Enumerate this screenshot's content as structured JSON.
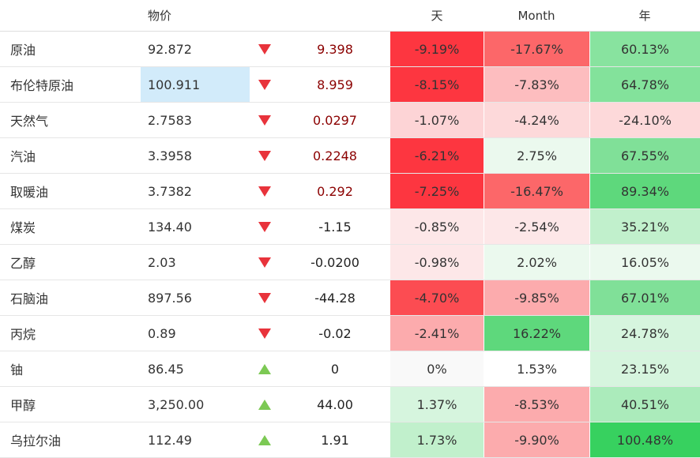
{
  "header": {
    "price": "物价",
    "day": "天",
    "month": "Month",
    "year": "年"
  },
  "colors": {
    "arrow_down": "#e8333b",
    "arrow_up": "#7cc954",
    "highlight": "#d2ebfa"
  },
  "rows": [
    {
      "name": "原油",
      "price": "92.872",
      "dir": "down",
      "change": "9.398",
      "change_red": true,
      "day": "-9.19%",
      "month": "-17.67%",
      "year": "60.13%",
      "day_bg": "#fd3640",
      "month_bg": "#fc6769",
      "year_bg": "#88e39f"
    },
    {
      "name": "布伦特原油",
      "price": "100.911",
      "dir": "down",
      "change": "8.959",
      "change_red": true,
      "highlight": true,
      "day": "-8.15%",
      "month": "-7.83%",
      "year": "64.78%",
      "day_bg": "#fd3640",
      "month_bg": "#fdbdbf",
      "year_bg": "#83e29b"
    },
    {
      "name": "天然气",
      "price": "2.7583",
      "dir": "down",
      "change": "0.0297",
      "change_red": true,
      "day": "-1.07%",
      "month": "-4.24%",
      "year": "-24.10%",
      "day_bg": "#fdd4d6",
      "month_bg": "#fdd9da",
      "year_bg": "#fdd9da"
    },
    {
      "name": "汽油",
      "price": "3.3958",
      "dir": "down",
      "change": "0.2248",
      "change_red": true,
      "day": "-6.21%",
      "month": "2.75%",
      "year": "67.55%",
      "day_bg": "#fd3640",
      "month_bg": "#ebf9ee",
      "year_bg": "#80e098"
    },
    {
      "name": "取暖油",
      "price": "3.7382",
      "dir": "down",
      "change": "0.292",
      "change_red": true,
      "day": "-7.25%",
      "month": "-16.47%",
      "year": "89.34%",
      "day_bg": "#fd3640",
      "month_bg": "#fc6769",
      "year_bg": "#5ed87c"
    },
    {
      "name": "煤炭",
      "price": "134.40",
      "dir": "down",
      "change": "-1.15",
      "change_red": false,
      "day": "-0.85%",
      "month": "-2.54%",
      "year": "35.21%",
      "day_bg": "#fde7e8",
      "month_bg": "#fde7e8",
      "year_bg": "#c1f0cc"
    },
    {
      "name": "乙醇",
      "price": "2.03",
      "dir": "down",
      "change": "-0.0200",
      "change_red": false,
      "day": "-0.98%",
      "month": "2.02%",
      "year": "16.05%",
      "day_bg": "#fde7e8",
      "month_bg": "#ebf9ee",
      "year_bg": "#ebf9ee"
    },
    {
      "name": "石脑油",
      "price": "897.56",
      "dir": "down",
      "change": "-44.28",
      "change_red": false,
      "day": "-4.70%",
      "month": "-9.85%",
      "year": "67.01%",
      "day_bg": "#fc4c52",
      "month_bg": "#fcabad",
      "year_bg": "#80e098"
    },
    {
      "name": "丙烷",
      "price": "0.89",
      "dir": "down",
      "change": "-0.02",
      "change_red": false,
      "day": "-2.41%",
      "month": "16.22%",
      "year": "24.78%",
      "day_bg": "#fcabad",
      "month_bg": "#5ed87c",
      "year_bg": "#d6f5de"
    },
    {
      "name": "铀",
      "price": "86.45",
      "dir": "up",
      "change": "0",
      "change_red": false,
      "day": "0%",
      "month": "1.53%",
      "year": "23.15%",
      "day_bg": "#f9f9f9",
      "month_bg": "#ffffff",
      "year_bg": "#d6f5de"
    },
    {
      "name": "甲醇",
      "price": "3,250.00",
      "dir": "up",
      "change": "44.00",
      "change_red": false,
      "day": "1.37%",
      "month": "-8.53%",
      "year": "40.51%",
      "day_bg": "#d6f5de",
      "month_bg": "#fcabad",
      "year_bg": "#abebbb"
    },
    {
      "name": "乌拉尔油",
      "price": "112.49",
      "dir": "up",
      "change": "1.91",
      "change_red": false,
      "day": "1.73%",
      "month": "-9.90%",
      "year": "100.48%",
      "day_bg": "#c1f0cc",
      "month_bg": "#fcabad",
      "year_bg": "#37d15f"
    }
  ]
}
